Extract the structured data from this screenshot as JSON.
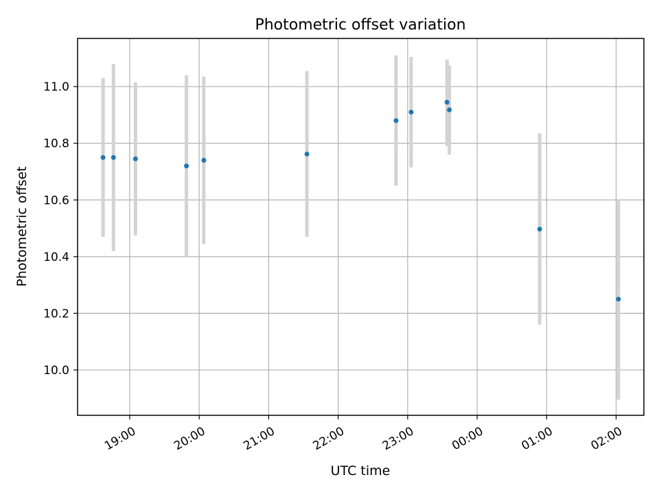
{
  "chart_data": {
    "type": "scatter",
    "title": "Photometric offset variation",
    "xlabel": "UTC time",
    "ylabel": "Photometric offset",
    "x_ticks": [
      "19:00",
      "20:00",
      "21:00",
      "22:00",
      "23:00",
      "00:00",
      "01:00",
      "02:00"
    ],
    "y_ticks": [
      "10.0",
      "10.2",
      "10.4",
      "10.6",
      "10.8",
      "11.0"
    ],
    "xlim": [
      "18:15",
      "02:24"
    ],
    "ylim": [
      9.84,
      11.17
    ],
    "grid": true,
    "colors": {
      "point": "#1f77b4",
      "errorbar": "#d3d3d3",
      "grid": "#b0b0b0"
    },
    "points": [
      {
        "x": "18:37",
        "y": 10.75,
        "yerr_low": 10.47,
        "yerr_high": 11.03
      },
      {
        "x": "18:46",
        "y": 10.75,
        "yerr_low": 10.42,
        "yerr_high": 11.08
      },
      {
        "x": "19:05",
        "y": 10.745,
        "yerr_low": 10.475,
        "yerr_high": 11.015
      },
      {
        "x": "19:49",
        "y": 10.72,
        "yerr_low": 10.4,
        "yerr_high": 11.04
      },
      {
        "x": "20:04",
        "y": 10.74,
        "yerr_low": 10.445,
        "yerr_high": 11.035
      },
      {
        "x": "21:33",
        "y": 10.762,
        "yerr_low": 10.47,
        "yerr_high": 11.055
      },
      {
        "x": "22:50",
        "y": 10.88,
        "yerr_low": 10.65,
        "yerr_high": 11.11
      },
      {
        "x": "23:03",
        "y": 10.91,
        "yerr_low": 10.715,
        "yerr_high": 11.105
      },
      {
        "x": "23:34",
        "y": 10.945,
        "yerr_low": 10.79,
        "yerr_high": 11.095
      },
      {
        "x": "23:36",
        "y": 10.918,
        "yerr_low": 10.76,
        "yerr_high": 11.075
      },
      {
        "x": "00:54",
        "y": 10.497,
        "yerr_low": 10.16,
        "yerr_high": 10.835
      },
      {
        "x": "02:02",
        "y": 10.25,
        "yerr_low": 9.895,
        "yerr_high": 10.6
      }
    ]
  }
}
